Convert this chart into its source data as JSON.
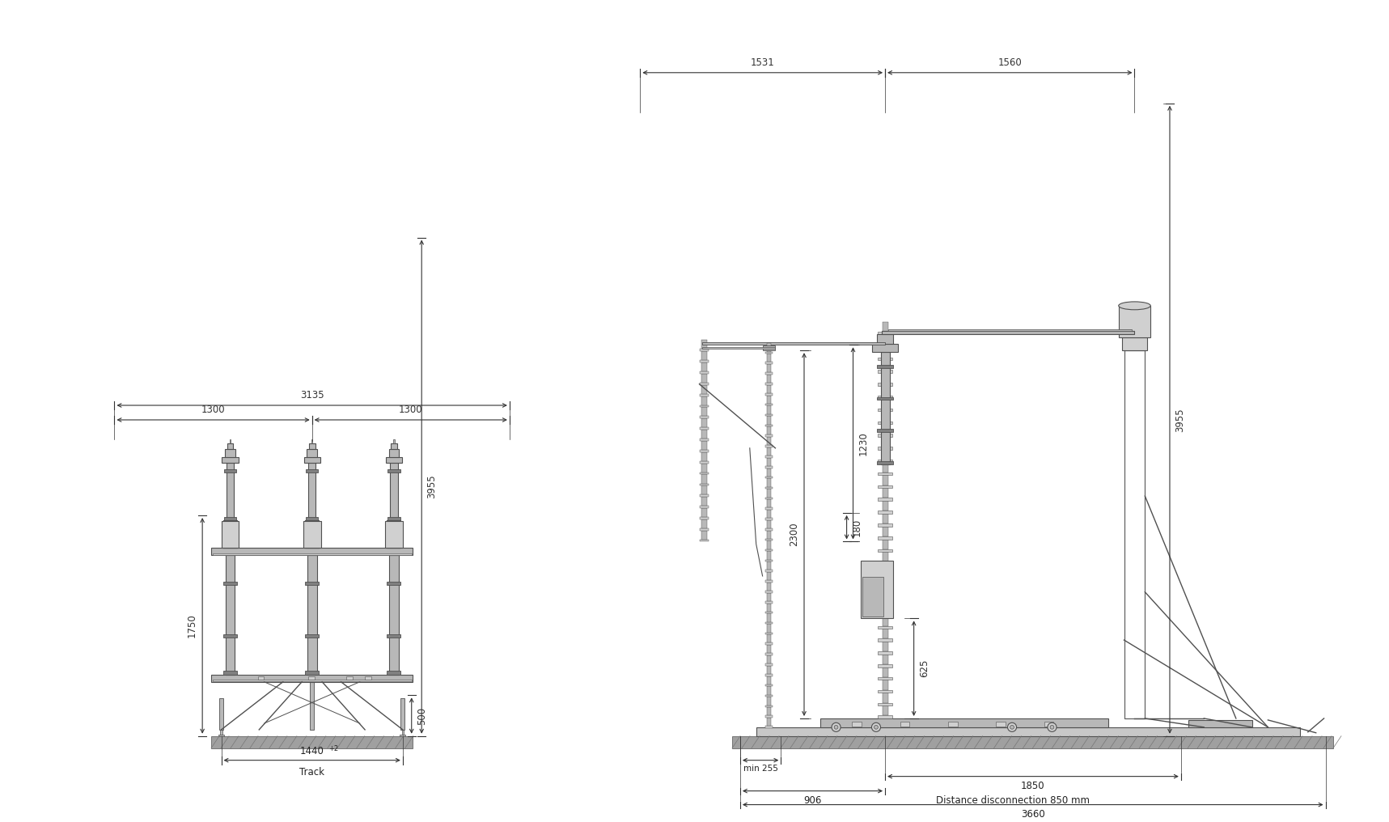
{
  "bg_color": "#ffffff",
  "line_color": "#505050",
  "fill_gray": "#b8b8b8",
  "fill_light": "#d0d0d0",
  "fill_white": "#ffffff",
  "fill_dark": "#808080",
  "ground_fill": "#a0a0a0",
  "dim_color": "#333333",
  "text_color": "#222222",
  "left_dims": {
    "top_span": "3135",
    "mid_span1": "1300",
    "mid_span2": "1300",
    "height_total": "3955",
    "height_lower": "1750",
    "track_width": "1440",
    "track_sup": "+2",
    "track_label": "Track",
    "height_500": "500"
  },
  "right_dims": {
    "top_left": "1531",
    "top_right": "1560",
    "h_1230": "1230",
    "h_180": "180",
    "h_3955": "3955",
    "h_625": "625",
    "h_2300": "2300",
    "bot_min255": "min 255",
    "bot_906": "906",
    "bot_1850": "1850",
    "bot_label": "Distance disconnection 850 mm",
    "bot_3660": "3660"
  }
}
